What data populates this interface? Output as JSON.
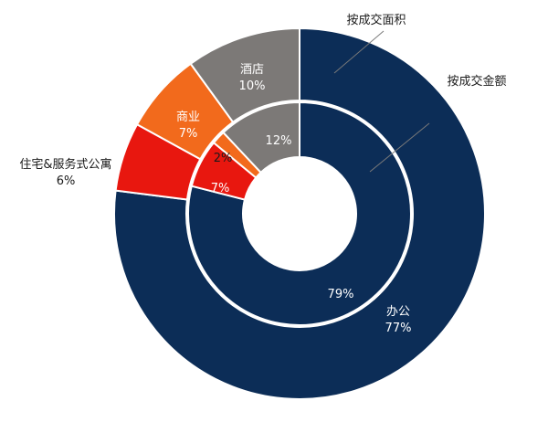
{
  "chart_data": {
    "type": "pie",
    "subtype": "nested-donut",
    "colors": {
      "办公": "#0c2d57",
      "住宅&服务式公寓": "#e8170f",
      "商业": "#f26a1c",
      "酒店": "#7c7977"
    },
    "series": [
      {
        "name": "按成交面积",
        "ring": "outer",
        "categories": [
          "办公",
          "住宅&服务式公寓",
          "商业",
          "酒店"
        ],
        "values": [
          77,
          6,
          7,
          10
        ],
        "labels": [
          "办公\n77%",
          "住宅&服务式公寓\n6%",
          "商业\n7%",
          "酒店\n10%"
        ]
      },
      {
        "name": "按成交金额",
        "ring": "inner",
        "categories": [
          "办公",
          "住宅&服务式公寓",
          "商业",
          "酒店"
        ],
        "values": [
          79,
          7,
          2,
          12
        ],
        "labels": [
          "79%",
          "7%",
          "2%",
          "12%"
        ]
      }
    ]
  }
}
